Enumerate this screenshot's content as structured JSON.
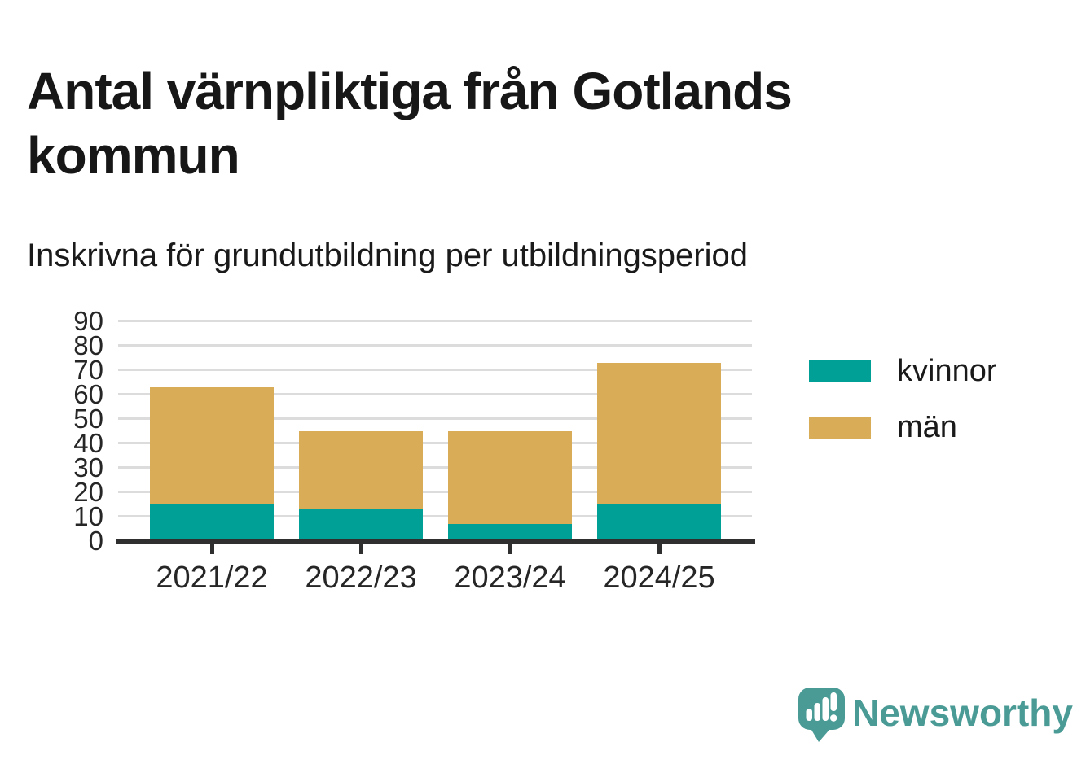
{
  "header": {
    "title": "Antal värnpliktiga från Gotlands kommun",
    "subtitle": "Inskrivna för grundutbildning per utbildningsperiod"
  },
  "chart_data": {
    "type": "bar",
    "stacked": true,
    "title": "Antal värnpliktiga från Gotlands kommun",
    "subtitle": "Inskrivna för grundutbildning per utbildningsperiod",
    "categories": [
      "2021/22",
      "2022/23",
      "2023/24",
      "2024/25"
    ],
    "series": [
      {
        "name": "kvinnor",
        "color": "#00a096",
        "values": [
          15,
          13,
          7,
          15
        ]
      },
      {
        "name": "män",
        "color": "#d9ac58",
        "values": [
          48,
          32,
          38,
          58
        ]
      }
    ],
    "totals": [
      63,
      45,
      45,
      73
    ],
    "xlabel": "",
    "ylabel": "",
    "ylim": [
      0,
      90
    ],
    "yticks": [
      0,
      10,
      20,
      30,
      40,
      50,
      60,
      70,
      80,
      90
    ],
    "grid": true,
    "legend_position": "right-top"
  },
  "legend": {
    "items": [
      {
        "label": "kvinnor",
        "color": "#00a096"
      },
      {
        "label": "män",
        "color": "#d9ac58"
      }
    ]
  },
  "branding": {
    "logo_text": "Newsworthy",
    "logo_icon": "speech-bubble-bar-chart-icon",
    "color": "#4a9b96"
  },
  "colors": {
    "background": "#ffffff",
    "title_text": "#171717",
    "tick_label": "#262626",
    "gridline": "#dcdcdc",
    "axis_line": "#2f2f2f",
    "kvinnor": "#00a096",
    "man": "#d9ac58",
    "brand_teal": "#4a9b96"
  }
}
